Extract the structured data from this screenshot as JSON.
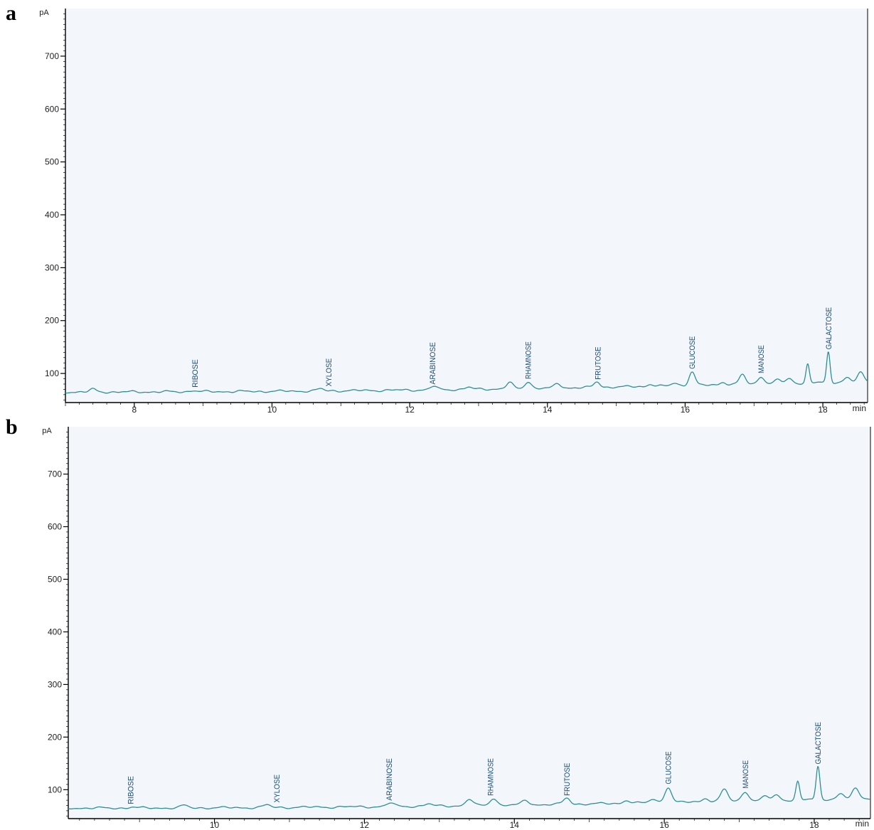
{
  "panels": [
    {
      "letter": "a"
    },
    {
      "letter": "b"
    }
  ],
  "colors": {
    "background": "#f3f6fb",
    "trace": "#2e8f96",
    "axis": "#000000",
    "label": "#1d4e78"
  },
  "chart_data": [
    {
      "type": "line",
      "ylabel": "pA",
      "xlabel": "min",
      "xlim": [
        7.0,
        18.65
      ],
      "ylim": [
        45,
        790
      ],
      "x_ticks": [
        8,
        10,
        12,
        14,
        16,
        18
      ],
      "y_ticks": [
        100,
        200,
        300,
        400,
        500,
        600,
        700
      ],
      "grid": false,
      "baseline": {
        "start": 65,
        "end": 85
      },
      "peaks": [
        {
          "x": 7.4,
          "y": 70
        },
        {
          "x": 8.85,
          "y": 68
        },
        {
          "x": 10.7,
          "y": 71
        },
        {
          "x": 12.35,
          "y": 76
        },
        {
          "x": 12.85,
          "y": 74
        },
        {
          "x": 13.45,
          "y": 83
        },
        {
          "x": 13.72,
          "y": 85
        },
        {
          "x": 14.15,
          "y": 81
        },
        {
          "x": 14.72,
          "y": 84
        },
        {
          "x": 15.5,
          "y": 80
        },
        {
          "x": 15.85,
          "y": 82
        },
        {
          "x": 16.1,
          "y": 103
        },
        {
          "x": 16.55,
          "y": 84
        },
        {
          "x": 16.83,
          "y": 98
        },
        {
          "x": 17.1,
          "y": 95
        },
        {
          "x": 17.35,
          "y": 89
        },
        {
          "x": 17.52,
          "y": 90
        },
        {
          "x": 17.78,
          "y": 117
        },
        {
          "x": 18.08,
          "y": 140
        },
        {
          "x": 18.35,
          "y": 92
        },
        {
          "x": 18.55,
          "y": 101
        }
      ],
      "annotations": [
        {
          "text": "RIBOSE",
          "x": 8.88,
          "y": 68
        },
        {
          "text": "XYLOSE",
          "x": 10.82,
          "y": 70
        },
        {
          "text": "ARABINOSE",
          "x": 12.33,
          "y": 74
        },
        {
          "text": "RHAMNOSE",
          "x": 13.72,
          "y": 84
        },
        {
          "text": "FRUTOSE",
          "x": 14.73,
          "y": 83
        },
        {
          "text": "GLUCOSE",
          "x": 16.1,
          "y": 103
        },
        {
          "text": "MANOSE",
          "x": 17.1,
          "y": 95
        },
        {
          "text": "GALACTOSE",
          "x": 18.08,
          "y": 140
        }
      ]
    },
    {
      "type": "line",
      "ylabel": "pA",
      "xlabel": "min",
      "xlim": [
        8.05,
        18.75
      ],
      "ylim": [
        45,
        790
      ],
      "x_ticks": [
        10,
        12,
        14,
        16,
        18
      ],
      "y_ticks": [
        100,
        200,
        300,
        400,
        500,
        600,
        700
      ],
      "grid": false,
      "baseline": {
        "start": 65,
        "end": 84
      },
      "peaks": [
        {
          "x": 8.9,
          "y": 67
        },
        {
          "x": 9.6,
          "y": 70
        },
        {
          "x": 10.7,
          "y": 71
        },
        {
          "x": 12.35,
          "y": 75
        },
        {
          "x": 12.85,
          "y": 73
        },
        {
          "x": 13.4,
          "y": 82
        },
        {
          "x": 13.72,
          "y": 84
        },
        {
          "x": 14.15,
          "y": 80
        },
        {
          "x": 14.7,
          "y": 84
        },
        {
          "x": 15.5,
          "y": 80
        },
        {
          "x": 15.85,
          "y": 82
        },
        {
          "x": 16.05,
          "y": 105
        },
        {
          "x": 16.55,
          "y": 84
        },
        {
          "x": 16.8,
          "y": 101
        },
        {
          "x": 17.08,
          "y": 97
        },
        {
          "x": 17.35,
          "y": 88
        },
        {
          "x": 17.5,
          "y": 89
        },
        {
          "x": 17.78,
          "y": 115
        },
        {
          "x": 18.05,
          "y": 143
        },
        {
          "x": 18.35,
          "y": 92
        },
        {
          "x": 18.55,
          "y": 101
        }
      ],
      "annotations": [
        {
          "text": "RIBOSE",
          "x": 8.88,
          "y": 67
        },
        {
          "text": "XYLOSE",
          "x": 10.83,
          "y": 70
        },
        {
          "text": "ARABINOSE",
          "x": 12.33,
          "y": 74
        },
        {
          "text": "RHAMNOSE",
          "x": 13.68,
          "y": 83
        },
        {
          "text": "FRUTOSE",
          "x": 14.7,
          "y": 83
        },
        {
          "text": "GLUCOSE",
          "x": 16.05,
          "y": 105
        },
        {
          "text": "MANOSE",
          "x": 17.08,
          "y": 97
        },
        {
          "text": "GALACTOSE",
          "x": 18.05,
          "y": 143
        }
      ]
    }
  ]
}
